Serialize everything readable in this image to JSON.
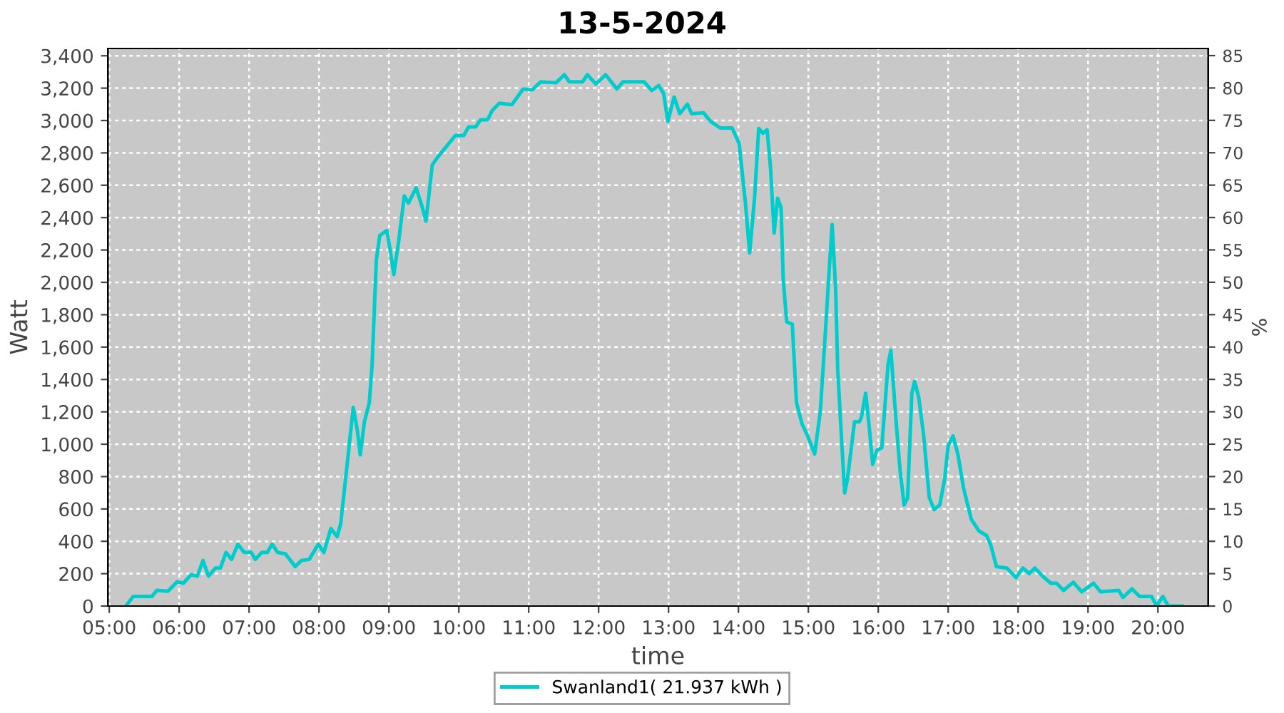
{
  "chart_data": {
    "type": "line",
    "title": "13-5-2024",
    "xlabel": "time",
    "ylabel": "Watt",
    "y2label": "%",
    "series": [
      {
        "name": "Swanland1( 21.937 kWh )",
        "color": "#00cccc",
        "x": [
          5.24,
          5.34,
          5.61,
          5.68,
          5.84,
          5.97,
          6.06,
          6.17,
          6.26,
          6.34,
          6.42,
          6.52,
          6.59,
          6.67,
          6.75,
          6.84,
          6.93,
          7.03,
          7.09,
          7.18,
          7.26,
          7.33,
          7.41,
          7.52,
          7.66,
          7.75,
          7.86,
          7.99,
          8.07,
          8.17,
          8.26,
          8.31,
          8.41,
          8.49,
          8.55,
          8.59,
          8.65,
          8.72,
          8.76,
          8.82,
          8.87,
          8.97,
          9.02,
          9.07,
          9.14,
          9.22,
          9.28,
          9.39,
          9.47,
          9.53,
          9.62,
          9.7,
          9.8,
          9.95,
          10.07,
          10.14,
          10.24,
          10.31,
          10.41,
          10.48,
          10.58,
          10.76,
          10.92,
          11.05,
          11.17,
          11.39,
          11.51,
          11.58,
          11.77,
          11.84,
          11.96,
          12.1,
          12.26,
          12.35,
          12.65,
          12.76,
          12.86,
          12.93,
          12.99,
          13.08,
          13.16,
          13.27,
          13.33,
          13.5,
          13.6,
          13.74,
          13.91,
          14.01,
          14.1,
          14.16,
          14.23,
          14.29,
          14.35,
          14.41,
          14.46,
          14.51,
          14.56,
          14.61,
          14.64,
          14.69,
          14.77,
          14.83,
          14.91,
          14.99,
          15.09,
          15.17,
          15.24,
          15.29,
          15.34,
          15.39,
          15.42,
          15.48,
          15.52,
          15.56,
          15.61,
          15.66,
          15.73,
          15.76,
          15.82,
          15.87,
          15.92,
          15.98,
          16.05,
          16.14,
          16.18,
          16.25,
          16.31,
          16.37,
          16.42,
          16.48,
          16.52,
          16.58,
          16.65,
          16.73,
          16.8,
          16.88,
          16.95,
          17.0,
          17.07,
          17.14,
          17.22,
          17.33,
          17.44,
          17.55,
          17.61,
          17.69,
          17.84,
          17.97,
          18.07,
          18.16,
          18.24,
          18.35,
          18.47,
          18.55,
          18.65,
          18.79,
          18.91,
          19.08,
          19.18,
          19.44,
          19.5,
          19.63,
          19.74,
          19.91,
          19.98,
          20.07,
          20.15,
          20.35
        ],
        "values": [
          0,
          59,
          59,
          97,
          91,
          150,
          141,
          194,
          185,
          282,
          185,
          235,
          235,
          331,
          288,
          382,
          331,
          331,
          288,
          331,
          331,
          382,
          331,
          323,
          244,
          282,
          288,
          382,
          331,
          479,
          429,
          508,
          904,
          1227,
          1081,
          934,
          1139,
          1257,
          1492,
          2137,
          2290,
          2320,
          2196,
          2049,
          2255,
          2534,
          2490,
          2584,
          2475,
          2378,
          2725,
          2775,
          2828,
          2907,
          2907,
          2960,
          2960,
          3004,
          3004,
          3063,
          3107,
          3098,
          3195,
          3189,
          3239,
          3233,
          3283,
          3239,
          3239,
          3283,
          3225,
          3283,
          3195,
          3239,
          3239,
          3186,
          3216,
          3166,
          2995,
          3145,
          3042,
          3101,
          3042,
          3048,
          2995,
          2954,
          2954,
          2857,
          2490,
          2182,
          2520,
          2951,
          2922,
          2943,
          2702,
          2305,
          2520,
          2461,
          2020,
          1756,
          1741,
          1257,
          1125,
          1051,
          940,
          1198,
          1668,
          2020,
          2358,
          1961,
          1462,
          992,
          699,
          787,
          963,
          1139,
          1139,
          1169,
          1315,
          1110,
          875,
          963,
          978,
          1492,
          1580,
          1169,
          846,
          625,
          669,
          1315,
          1389,
          1286,
          1051,
          669,
          596,
          625,
          787,
          992,
          1051,
          934,
          728,
          537,
          464,
          435,
          376,
          244,
          235,
          176,
          235,
          200,
          235,
          185,
          141,
          141,
          97,
          147,
          88,
          141,
          88,
          97,
          53,
          106,
          59,
          59,
          0,
          59,
          0,
          0
        ]
      }
    ],
    "xlim": [
      4.98,
      20.72
    ],
    "xticks": [
      {
        "value": 5,
        "label": "05:00"
      },
      {
        "value": 6,
        "label": "06:00"
      },
      {
        "value": 7,
        "label": "07:00"
      },
      {
        "value": 8,
        "label": "08:00"
      },
      {
        "value": 9,
        "label": "09:00"
      },
      {
        "value": 10,
        "label": "10:00"
      },
      {
        "value": 11,
        "label": "11:00"
      },
      {
        "value": 12,
        "label": "12:00"
      },
      {
        "value": 13,
        "label": "13:00"
      },
      {
        "value": 14,
        "label": "14:00"
      },
      {
        "value": 15,
        "label": "15:00"
      },
      {
        "value": 16,
        "label": "16:00"
      },
      {
        "value": 17,
        "label": "17:00"
      },
      {
        "value": 18,
        "label": "18:00"
      },
      {
        "value": 19,
        "label": "19:00"
      },
      {
        "value": 20,
        "label": "20:00"
      }
    ],
    "ylim": [
      0,
      3445
    ],
    "yticks": [
      0,
      200,
      400,
      600,
      800,
      {
        "value": 1000,
        "label": "1,000"
      },
      {
        "value": 1200,
        "label": "1,200"
      },
      {
        "value": 1400,
        "label": "1,400"
      },
      {
        "value": 1600,
        "label": "1,600"
      },
      {
        "value": 1800,
        "label": "1,800"
      },
      {
        "value": 2000,
        "label": "2,000"
      },
      {
        "value": 2200,
        "label": "2,200"
      },
      {
        "value": 2400,
        "label": "2,400"
      },
      {
        "value": 2600,
        "label": "2,600"
      },
      {
        "value": 2800,
        "label": "2,800"
      },
      {
        "value": 3000,
        "label": "3,000"
      },
      {
        "value": 3200,
        "label": "3,200"
      },
      {
        "value": 3400,
        "label": "3,400"
      }
    ],
    "y2lim": [
      0,
      86.1
    ],
    "y2ticks": [
      0,
      5,
      10,
      15,
      20,
      25,
      30,
      35,
      40,
      45,
      50,
      55,
      60,
      65,
      70,
      75,
      80,
      85
    ],
    "grid": true,
    "legend": "bottom",
    "marker": "none",
    "line_style": "solid"
  }
}
